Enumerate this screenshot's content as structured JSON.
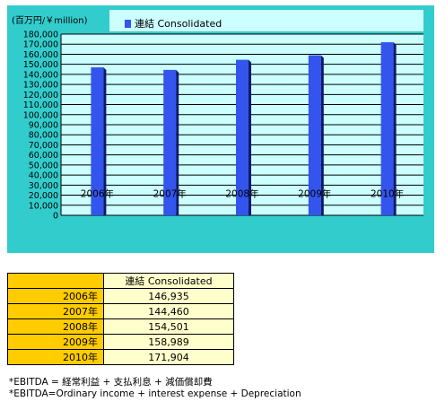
{
  "chart_data": {
    "type": "bar",
    "unit_label": "(百万円/￥million)",
    "categories": [
      "2006年",
      "2007年",
      "2008年",
      "2009年",
      "2010年"
    ],
    "series": [
      {
        "name": "連結 Consolidated",
        "values": [
          146935,
          144460,
          154501,
          158989,
          171904
        ]
      }
    ],
    "ylim": [
      0,
      180000
    ],
    "yticks": [
      "180,000",
      "170,000",
      "160,000",
      "150,000",
      "140,000",
      "130,000",
      "120,000",
      "110,000",
      "100,000",
      "90,000",
      "80,000",
      "70,000",
      "60,000",
      "50,000",
      "40,000",
      "30,000",
      "20,000",
      "10,000",
      "0"
    ],
    "grid": true,
    "legend_position": "top",
    "colors": {
      "bar": "#3355ee",
      "bar_side": "#0b1a6a",
      "plot_bg": "#ccffff",
      "panel_bg": "#33cccc",
      "grid": "#000000"
    }
  },
  "table": {
    "header": "連結 Consolidated",
    "rows": [
      {
        "year": "2006年",
        "value": "146,935"
      },
      {
        "year": "2007年",
        "value": "144,460"
      },
      {
        "year": "2008年",
        "value": "154,501"
      },
      {
        "year": "2009年",
        "value": "158,989"
      },
      {
        "year": "2010年",
        "value": "171,904"
      }
    ]
  },
  "notes": [
    "*EBITDA = 経常利益 + 支払利息 + 減価償却費",
    "*EBITDA=Ordinary income + interest expense + Depreciation"
  ]
}
